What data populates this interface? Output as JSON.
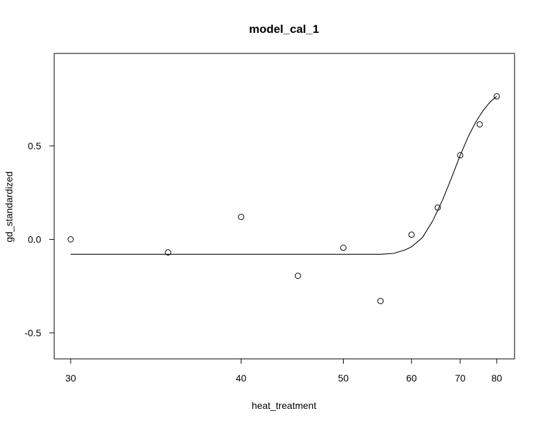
{
  "chart_data": {
    "type": "scatter",
    "title": "model_cal_1",
    "xlabel": "heat_treatment",
    "ylabel": "gd_standardized",
    "x_ticks": [
      30,
      40,
      50,
      60,
      70,
      80
    ],
    "x_tick_labels": [
      "30",
      "40",
      "50",
      "60",
      "70",
      "80"
    ],
    "x_scale": "reciprocal",
    "y_ticks": [
      -0.5,
      0.0,
      0.5
    ],
    "y_tick_labels": [
      "-0.5",
      "0.0",
      "0.5"
    ],
    "xlim": [
      30,
      80
    ],
    "ylim": [
      -0.6,
      0.8
    ],
    "grid": false,
    "series": [
      {
        "kind": "points",
        "x": [
          30,
          35,
          40,
          45,
          50,
          55,
          60,
          65,
          70,
          75,
          80
        ],
        "y": [
          0.0,
          -0.07,
          0.12,
          -0.195,
          -0.045,
          -0.33,
          0.025,
          0.17,
          0.45,
          0.615,
          0.765
        ]
      },
      {
        "kind": "line",
        "x": [
          30,
          40,
          50,
          55,
          57,
          59,
          60,
          62,
          64,
          66,
          68,
          70,
          72,
          74,
          76,
          78,
          80
        ],
        "y": [
          -0.08,
          -0.08,
          -0.08,
          -0.08,
          -0.075,
          -0.055,
          -0.04,
          0.01,
          0.1,
          0.21,
          0.33,
          0.45,
          0.55,
          0.63,
          0.69,
          0.735,
          0.765
        ]
      }
    ]
  }
}
